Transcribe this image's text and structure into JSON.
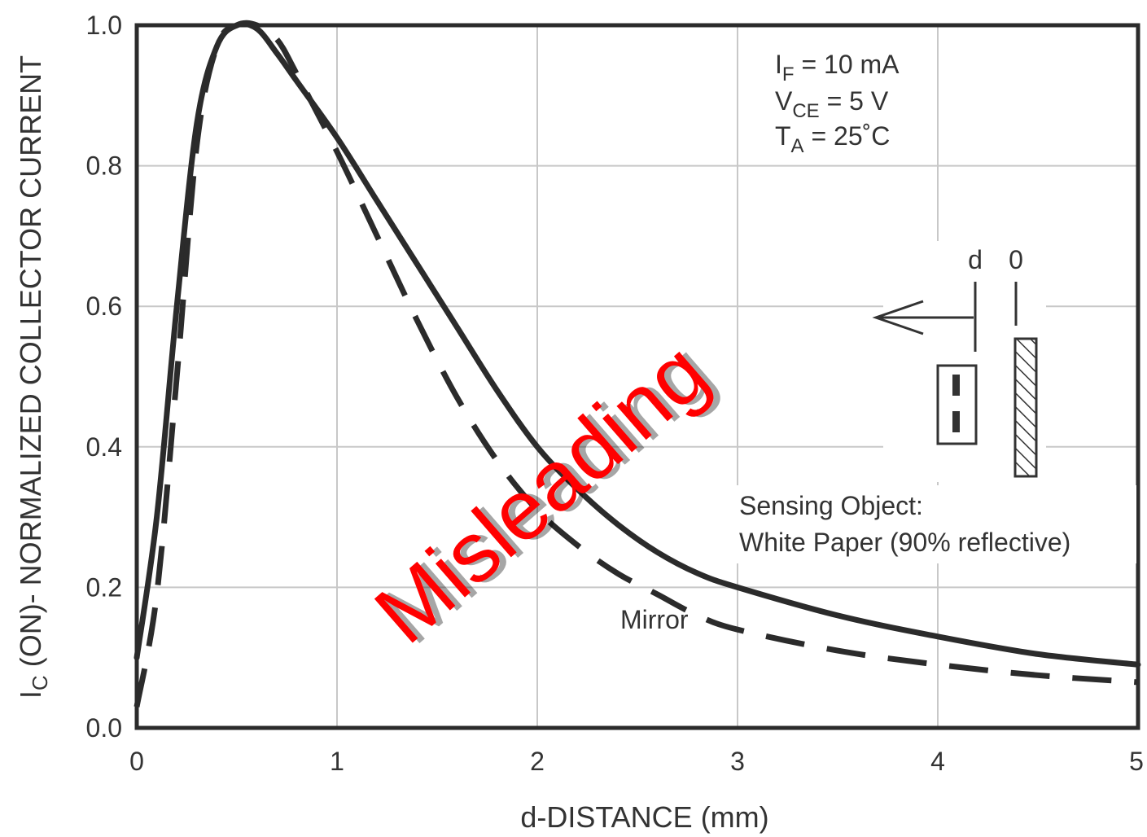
{
  "chart_data": {
    "type": "line",
    "title": "",
    "xlabel": "d-DISTANCE (mm)",
    "ylabel": {
      "main": "I",
      "sub": "C",
      "rest": " (ON)- NORMALIZED COLLECTOR CURRENT"
    },
    "xlim": [
      0,
      5
    ],
    "ylim": [
      0,
      1.0
    ],
    "x_ticks": [
      "0",
      "1",
      "2",
      "3",
      "4",
      "5"
    ],
    "y_ticks": [
      "0.0",
      "0.2",
      "0.4",
      "0.6",
      "0.8",
      "1.0"
    ],
    "grid": true,
    "series": [
      {
        "name": "White Paper (90% reflective)",
        "style": "solid",
        "x": [
          0,
          0.1,
          0.2,
          0.3,
          0.4,
          0.5,
          0.6,
          0.7,
          0.8,
          1.0,
          1.2,
          1.4,
          1.6,
          1.8,
          2.0,
          2.2,
          2.4,
          2.6,
          2.8,
          3.0,
          3.5,
          4.0,
          4.5,
          5.0
        ],
        "y": [
          0.1,
          0.3,
          0.6,
          0.86,
          0.97,
          1.0,
          0.995,
          0.96,
          0.92,
          0.84,
          0.75,
          0.66,
          0.57,
          0.48,
          0.4,
          0.34,
          0.29,
          0.25,
          0.22,
          0.2,
          0.16,
          0.13,
          0.105,
          0.09
        ]
      },
      {
        "name": "Mirror",
        "style": "dashed",
        "x": [
          0,
          0.1,
          0.2,
          0.3,
          0.4,
          0.5,
          0.6,
          0.7,
          0.8,
          1.0,
          1.2,
          1.4,
          1.6,
          1.8,
          2.0,
          2.2,
          2.4,
          2.6,
          2.8,
          3.0,
          3.5,
          4.0,
          4.5,
          5.0
        ],
        "y": [
          0.03,
          0.19,
          0.5,
          0.83,
          0.97,
          1.0,
          1.0,
          0.98,
          0.93,
          0.82,
          0.7,
          0.58,
          0.47,
          0.38,
          0.31,
          0.26,
          0.22,
          0.19,
          0.16,
          0.14,
          0.11,
          0.09,
          0.075,
          0.065
        ]
      }
    ],
    "conditions": [
      {
        "main": "I",
        "sub": "F",
        "rest": " = 10 mA"
      },
      {
        "main": "V",
        "sub": "CE",
        "rest": " = 5 V"
      },
      {
        "main": "T",
        "sub": "A",
        "rest": " = 25˚C"
      }
    ],
    "annotations": {
      "sensing_line1": "Sensing Object:",
      "sensing_line2": "White Paper (90% reflective)",
      "mirror_label": "Mirror",
      "inset_d": "d",
      "inset_zero": "0"
    },
    "overlay_text": "Misleading",
    "colors": {
      "curve": "#2b2b2b",
      "grid": "#c8c8c8",
      "frame": "#2b2b2b",
      "overlay": "#ff0000",
      "text": "#333333"
    }
  }
}
